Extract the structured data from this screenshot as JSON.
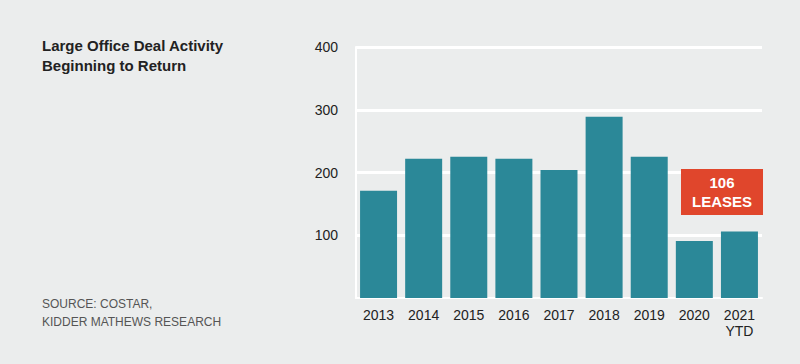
{
  "chart_data": {
    "type": "bar",
    "title": "Large Office Deal Activity\nBeginning to Return",
    "source": "SOURCE: COSTAR,\nKIDDER MATHEWS RESEARCH",
    "categories": [
      "2013",
      "2014",
      "2015",
      "2016",
      "2017",
      "2018",
      "2019",
      "2020",
      "2021\nYTD"
    ],
    "values": [
      171,
      222,
      225,
      222,
      204,
      289,
      225,
      91,
      106
    ],
    "color": "#2b8898",
    "ylim": [
      0,
      400
    ],
    "yticks": [
      100,
      200,
      300,
      400
    ],
    "grid": true,
    "annotations": [
      "106\nLEASES"
    ]
  }
}
